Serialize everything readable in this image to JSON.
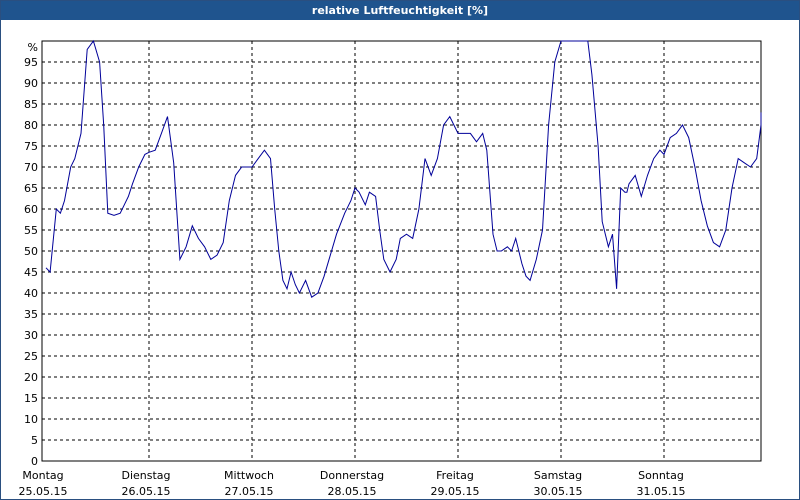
{
  "window": {
    "title": "relative Luftfeuchtigkeit [%]"
  },
  "chart_data": {
    "type": "line",
    "title": "relative Luftfeuchtigkeit [%]",
    "ylabel": "%",
    "ylim": [
      0,
      100
    ],
    "yticks": [
      0,
      5,
      10,
      15,
      20,
      25,
      30,
      35,
      40,
      45,
      50,
      55,
      60,
      65,
      70,
      75,
      80,
      85,
      90,
      95
    ],
    "grid": true,
    "line_color": "#000099",
    "days": [
      {
        "name": "Montag",
        "date": "25.05.15"
      },
      {
        "name": "Dienstag",
        "date": "26.05.15"
      },
      {
        "name": "Mittwoch",
        "date": "27.05.15"
      },
      {
        "name": "Donnerstag",
        "date": "28.05.15"
      },
      {
        "name": "Freitag",
        "date": "29.05.15"
      },
      {
        "name": "Samstag",
        "date": "30.05.15"
      },
      {
        "name": "Sonntag",
        "date": "31.05.15"
      }
    ],
    "series": [
      {
        "x": [
          0.0,
          0.04,
          0.1,
          0.14,
          0.18,
          0.24,
          0.28,
          0.34,
          0.4,
          0.46,
          0.52,
          0.56,
          0.6,
          0.66,
          0.72,
          0.76,
          0.8,
          0.84,
          0.9,
          0.96,
          1.0,
          1.06,
          1.12,
          1.18,
          1.24,
          1.3,
          1.36,
          1.42,
          1.48,
          1.54,
          1.6,
          1.66,
          1.72,
          1.78,
          1.84,
          1.9,
          2.0,
          2.06,
          2.12,
          2.18,
          2.22,
          2.26,
          2.3,
          2.34,
          2.38,
          2.42,
          2.46,
          2.52,
          2.58,
          2.64,
          2.7,
          2.76,
          2.82,
          2.9,
          2.96,
          3.0,
          3.04,
          3.1,
          3.14,
          3.2,
          3.24,
          3.28,
          3.34,
          3.4,
          3.44,
          3.5,
          3.56,
          3.62,
          3.68,
          3.74,
          3.8,
          3.86,
          3.92,
          4.0,
          4.06,
          4.12,
          4.18,
          4.24,
          4.28,
          4.34,
          4.38,
          4.42,
          4.48,
          4.52,
          4.56,
          4.62,
          4.66,
          4.7,
          4.76,
          4.82,
          4.88,
          4.94,
          5.0,
          5.04,
          5.08,
          5.14,
          5.2,
          5.26,
          5.3,
          5.36,
          5.4,
          5.46,
          5.5,
          5.54,
          5.58,
          5.62,
          5.64,
          5.66,
          5.72,
          5.78,
          5.84,
          5.9,
          5.96,
          6.0,
          6.06,
          6.12,
          6.18,
          6.24,
          6.3,
          6.36,
          6.42,
          6.48,
          6.54,
          6.6,
          6.66,
          6.72,
          6.78,
          6.84,
          6.9,
          6.96,
          7.02,
          7.06
        ],
        "y": [
          46,
          45,
          60,
          59,
          62,
          70,
          72,
          78,
          98,
          100,
          95,
          80,
          59,
          58.5,
          59,
          61,
          63,
          66,
          70,
          73,
          73.5,
          74,
          78,
          82,
          71,
          48,
          51,
          56,
          53,
          51,
          48,
          49,
          52,
          62,
          68,
          70,
          70,
          72,
          74,
          72,
          60,
          50,
          43,
          41,
          45,
          42,
          40,
          43,
          39,
          40,
          44,
          49,
          54,
          59,
          62,
          65,
          64,
          61,
          64,
          63,
          55,
          48,
          45,
          48,
          53,
          54,
          53,
          60,
          72,
          68,
          72,
          80,
          82,
          78,
          78,
          78,
          76,
          78,
          74,
          54,
          50,
          50,
          51,
          50,
          53,
          47,
          44,
          43,
          48,
          55,
          80,
          95,
          100,
          100,
          100,
          100,
          100,
          100,
          92,
          75,
          57,
          51,
          54,
          41,
          65,
          64,
          64,
          66,
          68,
          63,
          68,
          72,
          74,
          73,
          77,
          78,
          80,
          77,
          70,
          62,
          56,
          52,
          51,
          55,
          65,
          72,
          71,
          70,
          72,
          80,
          83,
          81
        ]
      }
    ]
  }
}
